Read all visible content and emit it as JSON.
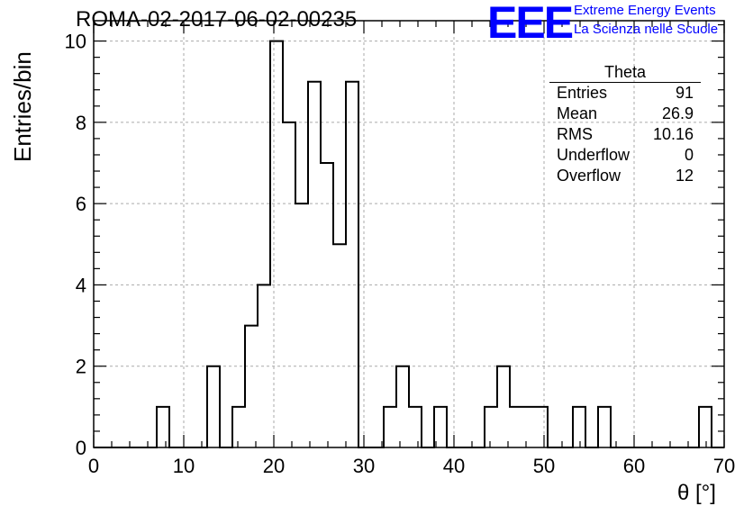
{
  "title": "ROMA-02-2017-06-02-00235",
  "logo": {
    "mark": "EEE",
    "line1": "Extreme Energy Events",
    "line2": "La Scienza nelle Scuole",
    "color": "#0000ff"
  },
  "stats": {
    "name": "Theta",
    "rows": [
      {
        "label": "Entries",
        "value": "91"
      },
      {
        "label": "Mean",
        "value": "26.9"
      },
      {
        "label": "RMS",
        "value": "10.16"
      },
      {
        "label": "Underflow",
        "value": "0"
      },
      {
        "label": "Overflow",
        "value": "12"
      }
    ]
  },
  "chart_data": {
    "type": "bar",
    "title": "ROMA-02-2017-06-02-00235",
    "xlabel": "θ [°]",
    "ylabel": "Entries/bin",
    "xlim": [
      0,
      70
    ],
    "ylim": [
      0,
      10.5
    ],
    "bin_width": 1.4,
    "grid": true,
    "legend": "top-right",
    "line_color": "#000000",
    "x_ticks": [
      0,
      10,
      20,
      30,
      40,
      50,
      60,
      70
    ],
    "y_ticks": [
      0,
      2,
      4,
      6,
      8,
      10
    ],
    "values": [
      0,
      0,
      0,
      0,
      0,
      1,
      0,
      0,
      0,
      2,
      0,
      1,
      3,
      4,
      10,
      8,
      6,
      9,
      7,
      5,
      9,
      0,
      0,
      1,
      2,
      1,
      0,
      1,
      0,
      0,
      0,
      1,
      2,
      1,
      1,
      1,
      0,
      0,
      1,
      0,
      1,
      0,
      0,
      0,
      0,
      0,
      0,
      0,
      1,
      0
    ]
  }
}
